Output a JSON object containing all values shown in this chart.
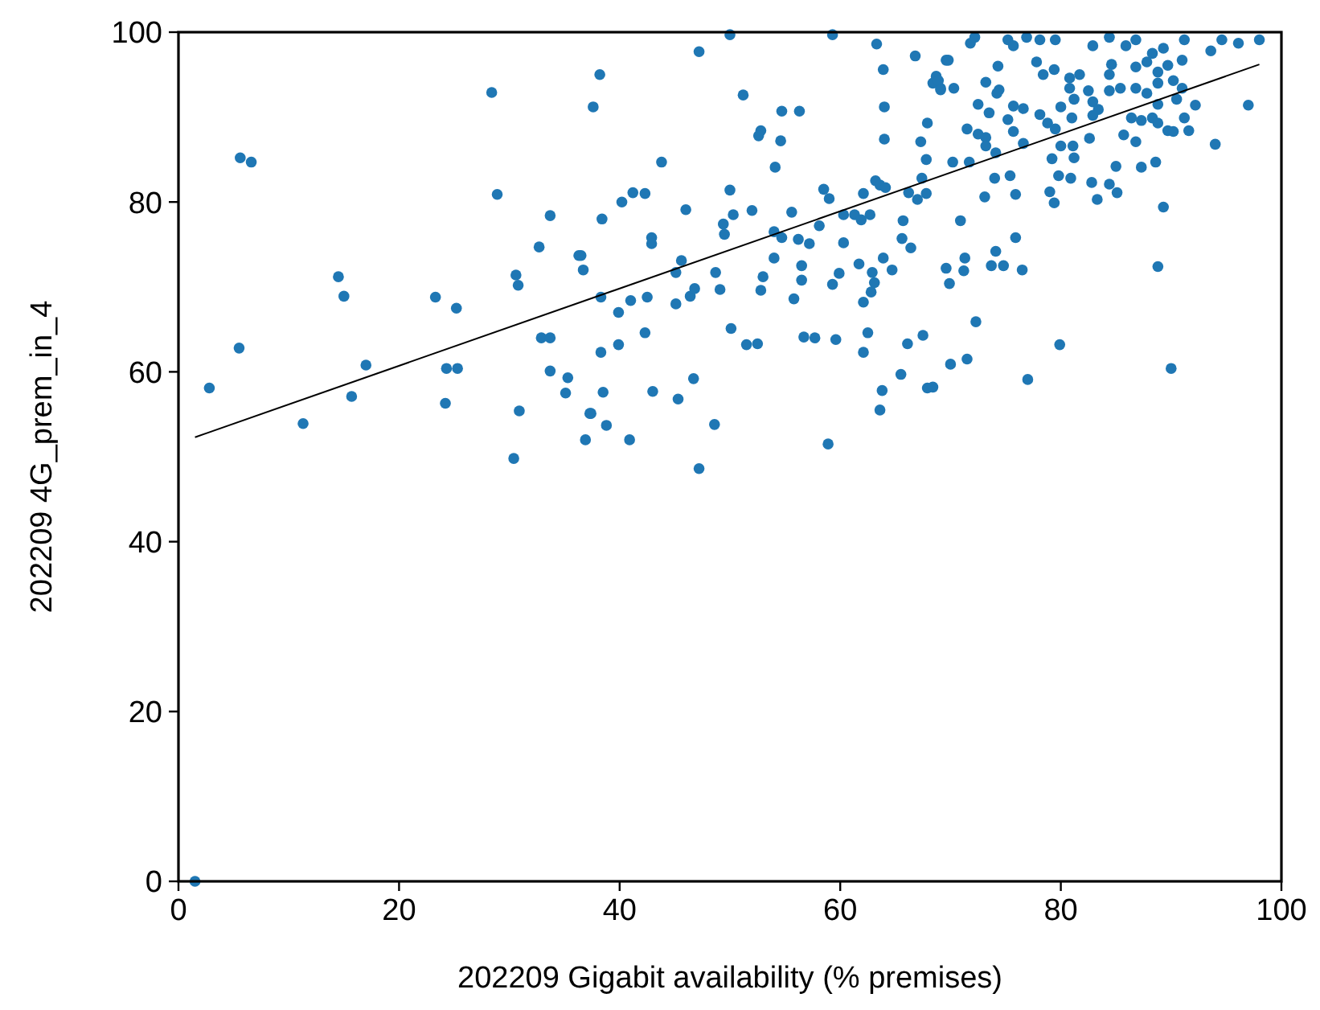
{
  "chart_data": {
    "type": "scatter",
    "xlabel": "202209 Gigabit availability (% premises)",
    "ylabel": "202209 4G_prem_in_4",
    "xlim": [
      0,
      100
    ],
    "ylim": [
      0,
      100
    ],
    "xticks": [
      0,
      20,
      40,
      60,
      80,
      100
    ],
    "yticks": [
      0,
      20,
      40,
      60,
      80,
      100
    ],
    "grid": false,
    "series": [
      {
        "marker": "circle",
        "color": "#1f77b4",
        "x": [
          1.5,
          28.4,
          37.6,
          5.6,
          6.6,
          28.9,
          33.7,
          32.7,
          36.3,
          36.7,
          14.5,
          15,
          30.6,
          30.8,
          23.3,
          25.2,
          5.5,
          32.9,
          33.7,
          17,
          24.3,
          25.3,
          33.7,
          35.3,
          35.1,
          2.8,
          15.7,
          24.2,
          30.9,
          37.3,
          11.3,
          36.9,
          30.4,
          50,
          59.3,
          47.2,
          63.3,
          66.8,
          69.6,
          63.9,
          38.2,
          68.7,
          68.4,
          69.1,
          51.2,
          64,
          54.7,
          56.3,
          67.9,
          52.8,
          52.6,
          54.6,
          64,
          67.3,
          67.8,
          43.8,
          54.1,
          67.4,
          63.2,
          63.6,
          64.1,
          41.2,
          42.3,
          40.2,
          50,
          58.5,
          59,
          62.1,
          66.2,
          67,
          67.8,
          38.4,
          46,
          50.3,
          52,
          55.6,
          60.3,
          61.3,
          61.9,
          62.7,
          65.7,
          49.4,
          49.5,
          54,
          54.7,
          58.1,
          42.9,
          42.9,
          56.2,
          57.2,
          60.3,
          65.6,
          66.4,
          36.5,
          45.6,
          45.1,
          54,
          56.5,
          56.5,
          61.7,
          63.9,
          62.9,
          63.1,
          62.8,
          62.1,
          64.7,
          48.7,
          49.1,
          53,
          52.8,
          59.9,
          59.3,
          38.3,
          41,
          42.5,
          39.9,
          45.1,
          46.4,
          46.8,
          55.8,
          42.3,
          50.1,
          51.5,
          52.5,
          56.7,
          57.7,
          59.6,
          62.5,
          62.1,
          67.5,
          66.1,
          38.3,
          39.9,
          65.5,
          67.9,
          46.7,
          38.5,
          43,
          45.3,
          63.8,
          63.6,
          37.4,
          38.8,
          40.9,
          48.6,
          58.9,
          47.2,
          71.8,
          72.2,
          75.2,
          75.7,
          76.9,
          78.1,
          79.5,
          82.9,
          84.4,
          85.9,
          86.8,
          88.3,
          89.3,
          91.2,
          93.6,
          94.6,
          96.1,
          98,
          69.8,
          74.3,
          77.8,
          78.4,
          79.4,
          80.8,
          81.7,
          80.8,
          82.5,
          84.6,
          84.4,
          86.8,
          87.8,
          88.8,
          89.7,
          91,
          68.9,
          69.1,
          70.3,
          73.2,
          74.4,
          74.2,
          84.4,
          85.4,
          86.8,
          87.8,
          88.8,
          90.2,
          91,
          72.5,
          73.5,
          75.7,
          76.6,
          80,
          81.2,
          82.9,
          83.4,
          88.8,
          90.5,
          92.2,
          97,
          75.2,
          78.1,
          78.8,
          79.5,
          81,
          82.9,
          86.4,
          87.3,
          88.3,
          88.8,
          91.2,
          71.5,
          72.5,
          73.2,
          75.7,
          76.6,
          89.7,
          90.2,
          91.6,
          85.7,
          82.6,
          86.8,
          94,
          73.2,
          74.1,
          80,
          81.1,
          79.2,
          81.2,
          70.2,
          71.7,
          85,
          87.3,
          88.6,
          74,
          75.4,
          79.8,
          80.9,
          82.8,
          84.4,
          85.1,
          73.1,
          75.9,
          79,
          79.4,
          83.3,
          89.3,
          70.9,
          75.9,
          74.1,
          71.3,
          69.6,
          71.2,
          73.7,
          74.8,
          76.5,
          69.9,
          88.8,
          72.3,
          79.9,
          70,
          71.5,
          77,
          90,
          68.4
        ],
        "values": [
          0,
          92.9,
          91.2,
          85.2,
          84.7,
          80.9,
          78.4,
          74.7,
          73.7,
          72,
          71.2,
          68.9,
          71.4,
          70.2,
          68.8,
          67.5,
          62.8,
          64,
          64,
          60.8,
          60.4,
          60.4,
          60.1,
          59.3,
          57.5,
          58.1,
          57.1,
          56.3,
          55.4,
          55.1,
          53.9,
          52,
          49.8,
          99.7,
          99.7,
          97.7,
          98.6,
          97.2,
          96.7,
          95.6,
          95,
          94.8,
          94,
          93.4,
          92.6,
          91.2,
          90.7,
          90.7,
          89.3,
          88.4,
          87.8,
          87.2,
          87.4,
          87.1,
          85,
          84.7,
          84.1,
          82.8,
          82.5,
          82,
          81.7,
          81.1,
          81,
          80,
          81.4,
          81.5,
          80.4,
          81,
          81.1,
          80.3,
          81,
          78,
          79.1,
          78.5,
          79,
          78.8,
          78.5,
          78.5,
          77.9,
          78.5,
          77.8,
          77.4,
          76.2,
          76.5,
          75.8,
          77.2,
          75.8,
          75.1,
          75.6,
          75.1,
          75.2,
          75.7,
          74.6,
          73.7,
          73.1,
          71.7,
          73.4,
          72.5,
          70.8,
          72.7,
          73.4,
          71.7,
          70.5,
          69.4,
          68.2,
          72,
          71.7,
          69.7,
          71.2,
          69.6,
          71.6,
          70.3,
          68.8,
          68.4,
          68.8,
          67,
          68,
          68.9,
          69.8,
          68.6,
          64.6,
          65.1,
          63.2,
          63.3,
          64.1,
          64,
          63.8,
          64.6,
          62.3,
          64.3,
          63.3,
          62.3,
          63.2,
          59.7,
          58.1,
          59.2,
          57.6,
          57.7,
          56.8,
          57.8,
          55.5,
          55.1,
          53.7,
          52,
          53.8,
          51.5,
          48.6,
          98.7,
          99.4,
          99.1,
          98.4,
          99.4,
          99.1,
          99.1,
          98.4,
          99.4,
          98.4,
          99.1,
          97.5,
          98.1,
          99.1,
          97.8,
          99.1,
          98.7,
          99.1,
          96.7,
          96,
          96.5,
          95,
          95.6,
          94.6,
          95,
          93.4,
          93.1,
          96.2,
          95,
          95.9,
          96.5,
          95.3,
          96.1,
          96.7,
          94.3,
          93.2,
          93.4,
          94.1,
          93.2,
          92.8,
          93.1,
          93.4,
          93.4,
          92.8,
          94,
          94.3,
          93.4,
          91.5,
          90.5,
          91.3,
          91,
          91.2,
          92.1,
          91.8,
          90.9,
          91.5,
          92.1,
          91.4,
          91.4,
          89.7,
          90.3,
          89.3,
          88.6,
          89.9,
          90.2,
          89.9,
          89.6,
          89.9,
          89.3,
          89.9,
          88.6,
          88,
          87.6,
          88.3,
          86.9,
          88.4,
          88.3,
          88.4,
          87.9,
          87.5,
          87.1,
          86.8,
          86.6,
          85.8,
          86.6,
          86.6,
          85.1,
          85.2,
          84.7,
          84.7,
          84.2,
          84.1,
          84.7,
          82.8,
          83.1,
          83.1,
          82.8,
          82.3,
          82.1,
          81.1,
          80.6,
          80.9,
          81.2,
          79.9,
          80.3,
          79.4,
          77.8,
          75.8,
          74.2,
          73.4,
          72.2,
          71.9,
          72.5,
          72.5,
          72,
          70.4,
          72.4,
          65.9,
          63.2,
          60.9,
          61.5,
          59.1,
          60.4,
          58.2
        ]
      },
      {
        "type": "line",
        "color": "#000000",
        "x": [
          1.5,
          98
        ],
        "values": [
          52.3,
          96.2
        ]
      }
    ]
  }
}
